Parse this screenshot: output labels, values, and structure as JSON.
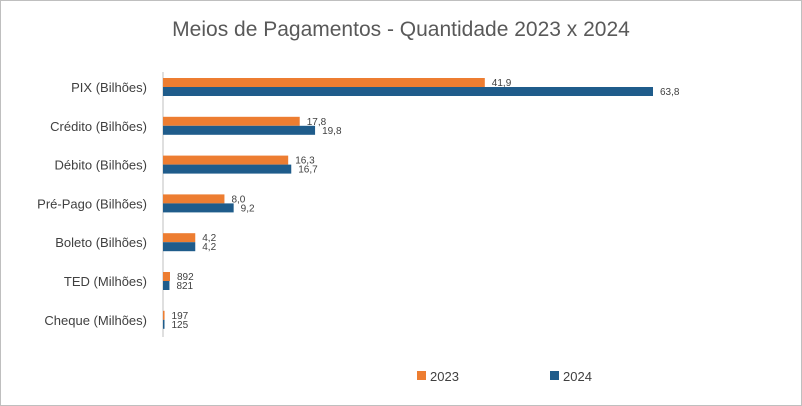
{
  "chart_data": {
    "type": "bar",
    "orientation": "horizontal",
    "title": "Meios de Pagamentos - Quantidade 2023 x 2024",
    "categories": [
      "PIX (Bilhões)",
      "Crédito (Bilhões)",
      "Débito (Bilhões)",
      "Pré-Pago (Bilhões)",
      "Boleto (Bilhões)",
      "TED (Milhões)",
      "Cheque (Milhões)"
    ],
    "series": [
      {
        "name": "2023",
        "color": "#ED7D31",
        "values": [
          41.9,
          17.8,
          16.3,
          8.0,
          4.2,
          892,
          197
        ],
        "labels": [
          "41,9",
          "17,8",
          "16,3",
          "8,0",
          "4,2",
          "892",
          "197"
        ]
      },
      {
        "name": "2024",
        "color": "#1F5C8B",
        "values": [
          63.8,
          19.8,
          16.7,
          9.2,
          4.2,
          821,
          125
        ],
        "labels": [
          "63,8",
          "19,8",
          "16,7",
          "9,2",
          "4,2",
          "821",
          "125"
        ]
      }
    ],
    "legend_position": "bottom",
    "xaxis_visible": false,
    "gridlines": false
  }
}
